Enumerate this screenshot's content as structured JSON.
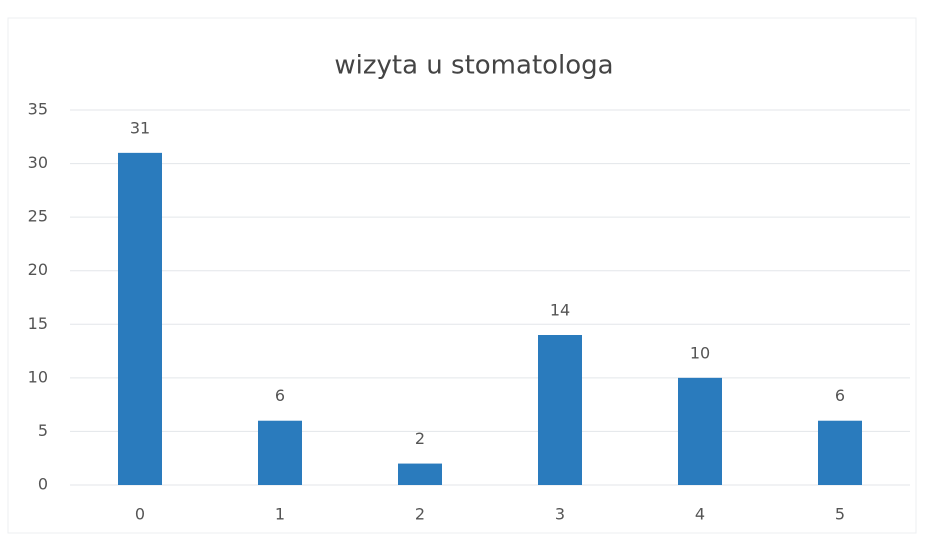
{
  "chart_data": {
    "type": "bar",
    "title": "wizyta u stomatologa",
    "categories": [
      "0",
      "1",
      "2",
      "3",
      "4",
      "5"
    ],
    "values": [
      31,
      6,
      2,
      14,
      10,
      6
    ],
    "color": "#2a7bbd",
    "ylim": [
      0,
      35
    ],
    "yticks": [
      0,
      5,
      10,
      15,
      20,
      25,
      30,
      35
    ],
    "grid": true
  }
}
